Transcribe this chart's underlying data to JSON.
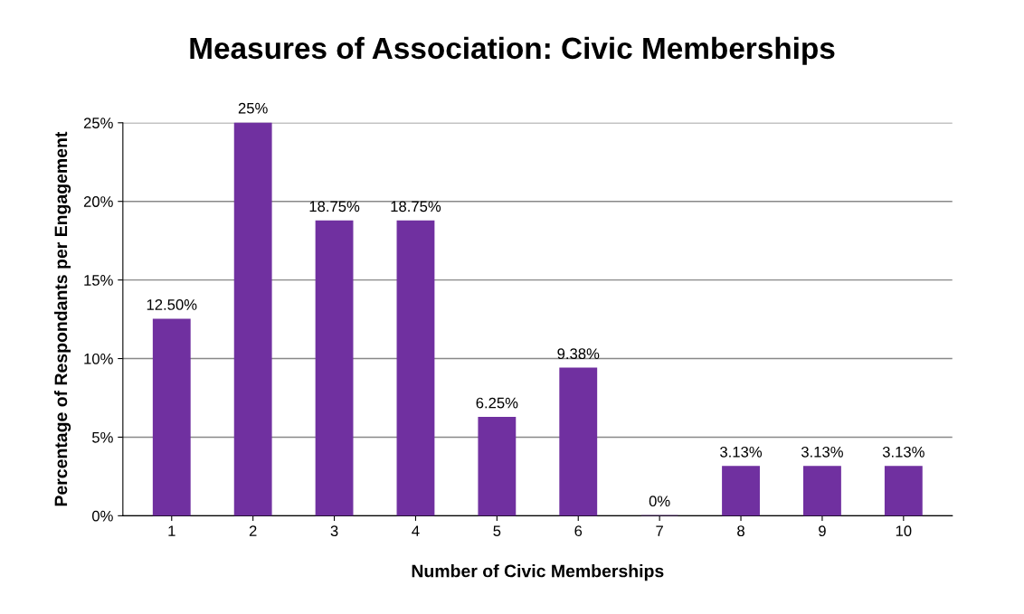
{
  "chart_data": {
    "type": "bar",
    "title": "Measures of Association: Civic Memberships",
    "xlabel": "Number of Civic Memberships",
    "ylabel": "Percentage of Respondants per Engagement",
    "categories": [
      "1",
      "2",
      "3",
      "4",
      "5",
      "6",
      "7",
      "8",
      "9",
      "10"
    ],
    "values": [
      12.5,
      25,
      18.75,
      18.75,
      6.25,
      9.38,
      0,
      3.13,
      3.13,
      3.13
    ],
    "value_labels": [
      "12.50%",
      "25%",
      "18.75%",
      "18.75%",
      "6.25%",
      "9.38%",
      "0%",
      "3.13%",
      "3.13%",
      "3.13%"
    ],
    "color": "#7030a0",
    "ylim": [
      0,
      25
    ],
    "yticks": [
      {
        "value": 0,
        "label": "0%"
      },
      {
        "value": 5,
        "label": "5%"
      },
      {
        "value": 10,
        "label": "10%"
      },
      {
        "value": 15,
        "label": "15%"
      },
      {
        "value": 20,
        "label": "20%"
      },
      {
        "value": 25,
        "label": "25%"
      }
    ],
    "grid": "y",
    "legend": false
  }
}
